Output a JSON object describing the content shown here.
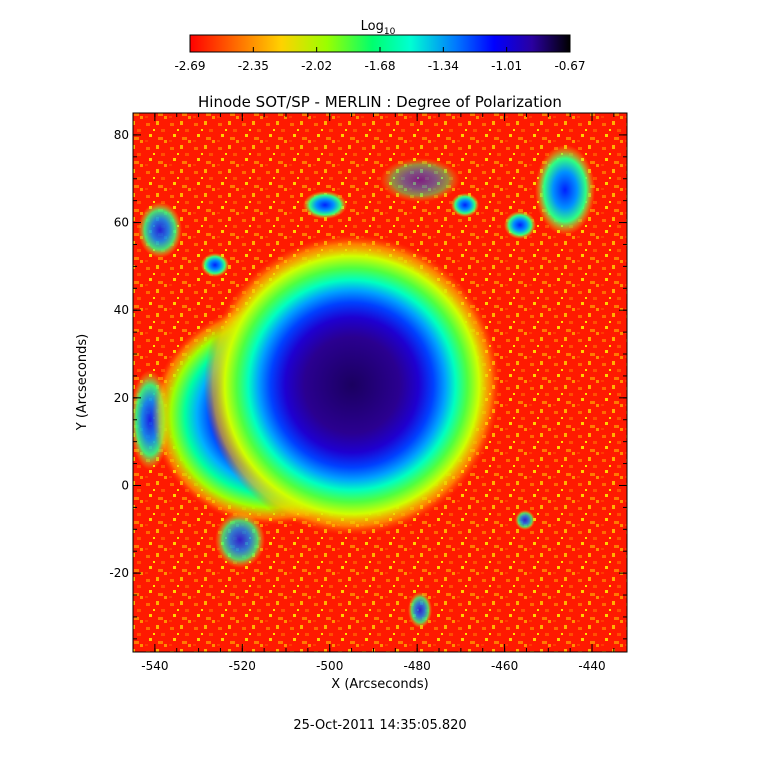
{
  "title": "Hinode SOT/SP - MERLIN : Degree of Polarization",
  "colorbar": {
    "label": "Log",
    "label_subscript": "10",
    "ticks": [
      "-2.69",
      "-2.35",
      "-2.02",
      "-1.68",
      "-1.34",
      "-1.01",
      "-0.67"
    ],
    "range": [
      -2.69,
      -0.67
    ],
    "colormap": [
      "#ff0000",
      "#ff6a00",
      "#ffd200",
      "#9aff00",
      "#00ff6e",
      "#00ffd2",
      "#0078ff",
      "#0000ff",
      "#2a00a0",
      "#000000"
    ]
  },
  "xaxis": {
    "label": "X (Arcseconds)",
    "ticks": [
      "-540",
      "-520",
      "-500",
      "-480",
      "-460",
      "-440"
    ],
    "range": [
      -545,
      -432
    ]
  },
  "yaxis": {
    "label": "Y (Arcseconds)",
    "ticks": [
      "-20",
      "0",
      "20",
      "40",
      "60",
      "80"
    ],
    "range": [
      -38,
      85
    ]
  },
  "timestamp": "25-Oct-2011 14:35:05.820"
}
